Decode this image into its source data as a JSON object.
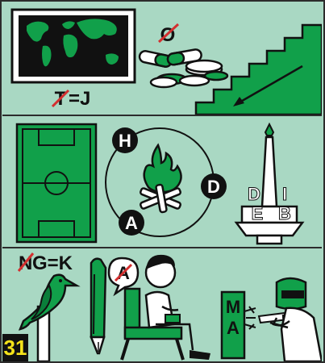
{
  "puzzle": {
    "number": "31",
    "colors": {
      "background": "#a9d8c3",
      "green": "#11a04a",
      "dark": "#111111",
      "white": "#ffffff",
      "number_bg": "#111111",
      "number_fg": "#f5e31a",
      "cross_out": "#d32f2f"
    }
  },
  "panel1": {
    "map_hint": {
      "struck": "T",
      "rest": "=J"
    },
    "pills_hint": {
      "struck": "O"
    },
    "icons": [
      "world-map-icon",
      "pills-icon",
      "stairs-down-icon"
    ]
  },
  "panel2": {
    "circle_letters": {
      "top": "H",
      "right": "D",
      "bottom": "A"
    },
    "monument_letters": {
      "left_top": "D",
      "left_bottom": "E",
      "right_top": "I",
      "right_bottom": "B"
    },
    "icons": [
      "soccer-field-icon",
      "campfire-icon",
      "monument-icon"
    ]
  },
  "panel3": {
    "bird_hint": {
      "struck": "N",
      "rest": "G=K"
    },
    "pen_hint": {
      "struck": "A"
    },
    "sign_letters": {
      "top": "M",
      "bottom": "A"
    },
    "icons": [
      "bird-icon",
      "pen-icon",
      "seated-man-icon",
      "welder-icon"
    ]
  }
}
